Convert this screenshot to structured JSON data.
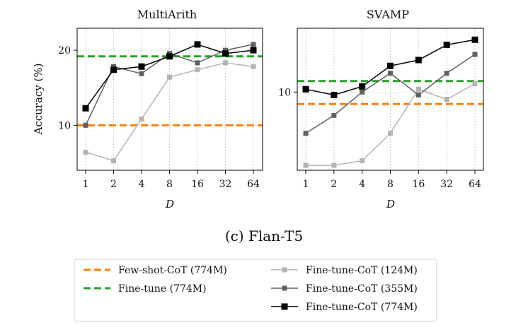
{
  "figure_caption": "(c) Flan-T5",
  "x_labels": [
    "1",
    "2",
    "4",
    "8",
    "16",
    "32",
    "64"
  ],
  "legend": {
    "entries": [
      {
        "label": "Few-shot-CoT (774M)",
        "color": "#ff7f0e",
        "style": "dashed"
      },
      {
        "label": "Fine-tune (774M)",
        "color": "#2ca02c",
        "style": "dashed"
      },
      {
        "label": "Fine-tune-CoT (124M)",
        "color": "#b3b3b3",
        "style": "line-square"
      },
      {
        "label": "Fine-tune-CoT (355M)",
        "color": "#606060",
        "style": "line-square"
      },
      {
        "label": "Fine-tune-CoT (774M)",
        "color": "#000000",
        "style": "line-square"
      }
    ]
  },
  "chart_data": [
    {
      "type": "line",
      "title": "MultiArith",
      "xlabel": "D",
      "ylabel": "Accuracy (%)",
      "x": [
        1,
        2,
        4,
        8,
        16,
        32,
        64
      ],
      "yscale": "log",
      "ylim": [
        6.6,
        24.5
      ],
      "yticks": [
        10,
        20
      ],
      "grid": true,
      "series": [
        {
          "name": "Fine-tune-CoT (124M)",
          "color": "#b3b3b3",
          "values": [
            7.8,
            7.2,
            10.6,
            15.6,
            16.7,
            17.8,
            17.2
          ]
        },
        {
          "name": "Fine-tune-CoT (355M)",
          "color": "#606060",
          "values": [
            10.0,
            17.2,
            16.1,
            19.4,
            17.8,
            20.0,
            21.1
          ]
        },
        {
          "name": "Fine-tune-CoT (774M)",
          "color": "#000000",
          "values": [
            11.7,
            16.7,
            17.2,
            18.9,
            21.1,
            19.4,
            20.0
          ]
        }
      ],
      "hlines": [
        {
          "name": "Few-shot-CoT (774M)",
          "color": "#ff7f0e",
          "value": 10.0
        },
        {
          "name": "Fine-tune (774M)",
          "color": "#2ca02c",
          "value": 18.9
        }
      ]
    },
    {
      "type": "line",
      "title": "SVAMP",
      "xlabel": "D",
      "ylabel": "",
      "x": [
        1,
        2,
        4,
        8,
        16,
        32,
        64
      ],
      "yscale": "log",
      "ylim": [
        5.8,
        15.6
      ],
      "yticks": [
        10
      ],
      "grid": true,
      "series": [
        {
          "name": "Fine-tune-CoT (124M)",
          "color": "#b3b3b3",
          "values": [
            6.0,
            6.0,
            6.2,
            7.5,
            10.2,
            9.5,
            10.6
          ]
        },
        {
          "name": "Fine-tune-CoT (355M)",
          "color": "#606060",
          "values": [
            7.5,
            8.5,
            10.0,
            11.4,
            9.8,
            11.4,
            13.0
          ]
        },
        {
          "name": "Fine-tune-CoT (774M)",
          "color": "#000000",
          "values": [
            10.2,
            9.8,
            10.4,
            12.0,
            12.5,
            13.9,
            14.4
          ]
        }
      ],
      "hlines": [
        {
          "name": "Few-shot-CoT (774M)",
          "color": "#ff7f0e",
          "value": 9.2
        },
        {
          "name": "Fine-tune (774M)",
          "color": "#2ca02c",
          "value": 10.8
        }
      ]
    }
  ]
}
